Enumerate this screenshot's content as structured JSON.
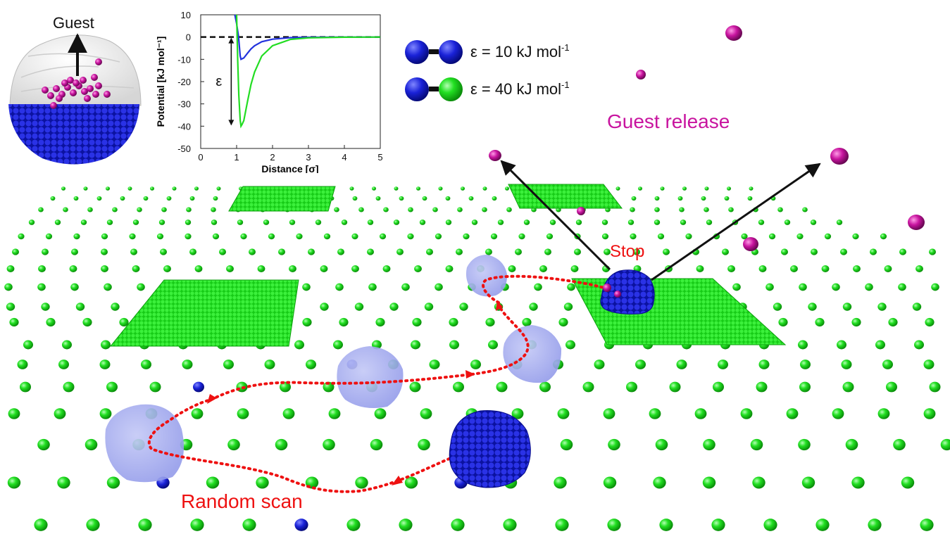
{
  "inset_cage": {
    "guest_label": "Guest"
  },
  "potential_chart": {
    "chart_data": {
      "type": "line",
      "xlabel": "Distance [σ]",
      "ylabel": "Potential [kJ mol⁻¹]",
      "xlim": [
        0,
        5
      ],
      "ylim": [
        -50,
        10
      ],
      "xticks": [
        "0",
        "1",
        "2",
        "3",
        "4",
        "5"
      ],
      "yticks": [
        "10",
        "0",
        "-10",
        "-20",
        "-30",
        "-40",
        "-50"
      ],
      "grid": false,
      "series": [
        {
          "color": "#2233dd",
          "epsilon": 10,
          "x": [
            0.95,
            1.0,
            1.05,
            1.1,
            1.122,
            1.2,
            1.3,
            1.4,
            1.5,
            1.7,
            2.0,
            2.5,
            3.0,
            4.0,
            5.0
          ],
          "y": [
            10,
            6,
            0.5,
            -8.5,
            -10,
            -9.4,
            -7.3,
            -5.3,
            -3.9,
            -2.1,
            -0.97,
            -0.26,
            -0.09,
            -0.02,
            0
          ]
        },
        {
          "color": "#22dd22",
          "epsilon": 40,
          "x": [
            1.0,
            1.03,
            1.06,
            1.1,
            1.122,
            1.15,
            1.2,
            1.3,
            1.4,
            1.5,
            1.7,
            2.0,
            2.5,
            3.0,
            4.0,
            5.0
          ],
          "y": [
            10,
            -10,
            -26,
            -37.4,
            -40,
            -39.2,
            -37.5,
            -29.2,
            -21.3,
            -15.7,
            -8.5,
            -3.9,
            -1.05,
            -0.36,
            -0.06,
            0
          ]
        }
      ],
      "epsilon_label": "ε",
      "zero_line": 0
    }
  },
  "legend": {
    "item1": {
      "sym": "ε",
      "rest": " = 10 kJ mol",
      "sup": "-1",
      "colors": [
        "#1a22d8",
        "#1a22d8"
      ]
    },
    "item2": {
      "sym": "ε",
      "rest": " = 40 kJ mol",
      "sup": "-1",
      "colors": [
        "#1a22d8",
        "#1ad81a"
      ]
    }
  },
  "annotations": {
    "guest_release": "Guest release",
    "stop": "Stop",
    "random_scan": "Random scan"
  },
  "colors": {
    "guest": "#c8149f",
    "nanoparticle": "#1a22d8",
    "surface_bead": "#1ad81a",
    "path": "#ee1111",
    "ghost": "#9aa2ee"
  }
}
